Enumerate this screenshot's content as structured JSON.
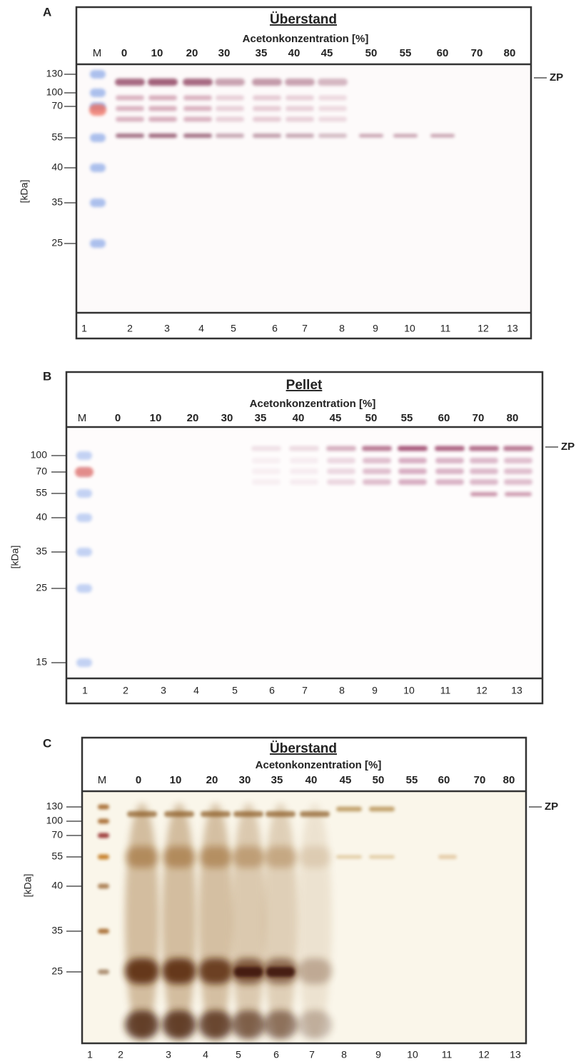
{
  "panels": [
    {
      "label": "A",
      "title": "Überstand",
      "subtitle": "Acetonkonzentration [%]",
      "lane_headers": [
        "M",
        0,
        10,
        20,
        30,
        35,
        40,
        45,
        50,
        55,
        60,
        70,
        80
      ],
      "y_axis_label": "[kDa]",
      "markers": [
        130,
        100,
        70,
        55,
        40,
        35,
        25
      ],
      "band_label": "ZP",
      "lane_numbers": [
        1,
        2,
        3,
        4,
        5,
        6,
        7,
        8,
        9,
        10,
        11,
        12,
        13
      ]
    },
    {
      "label": "B",
      "title": "Pellet",
      "subtitle": "Acetonkonzentration [%]",
      "lane_headers": [
        "M",
        0,
        10,
        20,
        30,
        35,
        40,
        45,
        50,
        55,
        60,
        70,
        80
      ],
      "y_axis_label": "[kDa]",
      "markers": [
        100,
        70,
        55,
        40,
        35,
        25,
        15
      ],
      "band_label": "ZP",
      "lane_numbers": [
        1,
        2,
        3,
        4,
        5,
        6,
        7,
        8,
        9,
        10,
        11,
        12,
        13
      ]
    },
    {
      "label": "C",
      "title": "Überstand",
      "subtitle": "Acetonkonzentration [%]",
      "lane_headers": [
        "M",
        0,
        10,
        20,
        30,
        35,
        40,
        45,
        50,
        55,
        60,
        70,
        80
      ],
      "y_axis_label": "[kDa]",
      "markers": [
        130,
        100,
        70,
        55,
        40,
        35,
        25
      ],
      "band_label": "ZP",
      "lane_numbers": [
        1,
        2,
        3,
        4,
        5,
        6,
        7,
        8,
        9,
        10,
        11,
        12,
        13
      ]
    }
  ]
}
